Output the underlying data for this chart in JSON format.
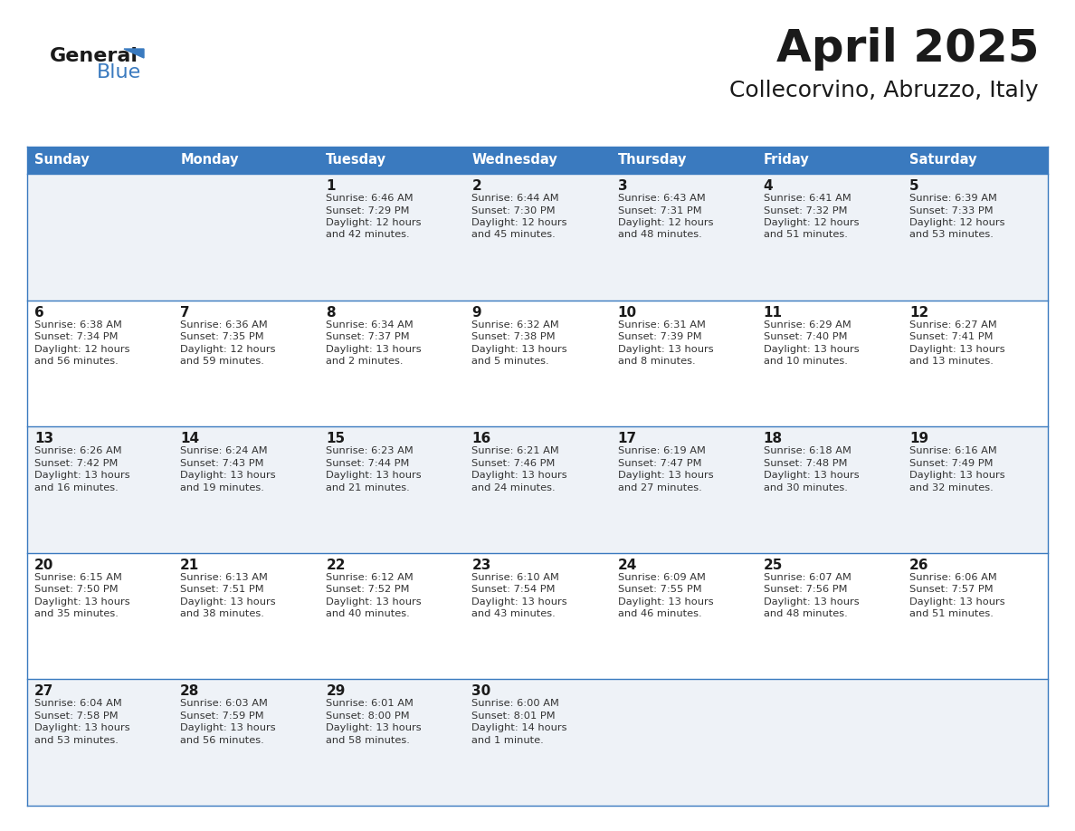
{
  "title": "April 2025",
  "subtitle": "Collecorvino, Abruzzo, Italy",
  "days_of_week": [
    "Sunday",
    "Monday",
    "Tuesday",
    "Wednesday",
    "Thursday",
    "Friday",
    "Saturday"
  ],
  "header_bg_color": "#3a7abf",
  "header_text_color": "#ffffff",
  "cell_bg_even": "#eef2f7",
  "cell_bg_odd": "#ffffff",
  "row_line_color": "#3a7abf",
  "title_color": "#1a1a1a",
  "subtitle_color": "#1a1a1a",
  "day_num_color": "#1a1a1a",
  "cell_text_color": "#333333",
  "logo_general_color": "#1a1a1a",
  "logo_blue_color": "#3a7abf",
  "fig_width": 11.88,
  "fig_height": 9.18,
  "dpi": 100,
  "weeks": [
    {
      "days": [
        {
          "day": null,
          "sunrise": null,
          "sunset": null,
          "daylight": null
        },
        {
          "day": null,
          "sunrise": null,
          "sunset": null,
          "daylight": null
        },
        {
          "day": 1,
          "sunrise": "Sunrise: 6:46 AM",
          "sunset": "Sunset: 7:29 PM",
          "daylight": "Daylight: 12 hours\nand 42 minutes."
        },
        {
          "day": 2,
          "sunrise": "Sunrise: 6:44 AM",
          "sunset": "Sunset: 7:30 PM",
          "daylight": "Daylight: 12 hours\nand 45 minutes."
        },
        {
          "day": 3,
          "sunrise": "Sunrise: 6:43 AM",
          "sunset": "Sunset: 7:31 PM",
          "daylight": "Daylight: 12 hours\nand 48 minutes."
        },
        {
          "day": 4,
          "sunrise": "Sunrise: 6:41 AM",
          "sunset": "Sunset: 7:32 PM",
          "daylight": "Daylight: 12 hours\nand 51 minutes."
        },
        {
          "day": 5,
          "sunrise": "Sunrise: 6:39 AM",
          "sunset": "Sunset: 7:33 PM",
          "daylight": "Daylight: 12 hours\nand 53 minutes."
        }
      ]
    },
    {
      "days": [
        {
          "day": 6,
          "sunrise": "Sunrise: 6:38 AM",
          "sunset": "Sunset: 7:34 PM",
          "daylight": "Daylight: 12 hours\nand 56 minutes."
        },
        {
          "day": 7,
          "sunrise": "Sunrise: 6:36 AM",
          "sunset": "Sunset: 7:35 PM",
          "daylight": "Daylight: 12 hours\nand 59 minutes."
        },
        {
          "day": 8,
          "sunrise": "Sunrise: 6:34 AM",
          "sunset": "Sunset: 7:37 PM",
          "daylight": "Daylight: 13 hours\nand 2 minutes."
        },
        {
          "day": 9,
          "sunrise": "Sunrise: 6:32 AM",
          "sunset": "Sunset: 7:38 PM",
          "daylight": "Daylight: 13 hours\nand 5 minutes."
        },
        {
          "day": 10,
          "sunrise": "Sunrise: 6:31 AM",
          "sunset": "Sunset: 7:39 PM",
          "daylight": "Daylight: 13 hours\nand 8 minutes."
        },
        {
          "day": 11,
          "sunrise": "Sunrise: 6:29 AM",
          "sunset": "Sunset: 7:40 PM",
          "daylight": "Daylight: 13 hours\nand 10 minutes."
        },
        {
          "day": 12,
          "sunrise": "Sunrise: 6:27 AM",
          "sunset": "Sunset: 7:41 PM",
          "daylight": "Daylight: 13 hours\nand 13 minutes."
        }
      ]
    },
    {
      "days": [
        {
          "day": 13,
          "sunrise": "Sunrise: 6:26 AM",
          "sunset": "Sunset: 7:42 PM",
          "daylight": "Daylight: 13 hours\nand 16 minutes."
        },
        {
          "day": 14,
          "sunrise": "Sunrise: 6:24 AM",
          "sunset": "Sunset: 7:43 PM",
          "daylight": "Daylight: 13 hours\nand 19 minutes."
        },
        {
          "day": 15,
          "sunrise": "Sunrise: 6:23 AM",
          "sunset": "Sunset: 7:44 PM",
          "daylight": "Daylight: 13 hours\nand 21 minutes."
        },
        {
          "day": 16,
          "sunrise": "Sunrise: 6:21 AM",
          "sunset": "Sunset: 7:46 PM",
          "daylight": "Daylight: 13 hours\nand 24 minutes."
        },
        {
          "day": 17,
          "sunrise": "Sunrise: 6:19 AM",
          "sunset": "Sunset: 7:47 PM",
          "daylight": "Daylight: 13 hours\nand 27 minutes."
        },
        {
          "day": 18,
          "sunrise": "Sunrise: 6:18 AM",
          "sunset": "Sunset: 7:48 PM",
          "daylight": "Daylight: 13 hours\nand 30 minutes."
        },
        {
          "day": 19,
          "sunrise": "Sunrise: 6:16 AM",
          "sunset": "Sunset: 7:49 PM",
          "daylight": "Daylight: 13 hours\nand 32 minutes."
        }
      ]
    },
    {
      "days": [
        {
          "day": 20,
          "sunrise": "Sunrise: 6:15 AM",
          "sunset": "Sunset: 7:50 PM",
          "daylight": "Daylight: 13 hours\nand 35 minutes."
        },
        {
          "day": 21,
          "sunrise": "Sunrise: 6:13 AM",
          "sunset": "Sunset: 7:51 PM",
          "daylight": "Daylight: 13 hours\nand 38 minutes."
        },
        {
          "day": 22,
          "sunrise": "Sunrise: 6:12 AM",
          "sunset": "Sunset: 7:52 PM",
          "daylight": "Daylight: 13 hours\nand 40 minutes."
        },
        {
          "day": 23,
          "sunrise": "Sunrise: 6:10 AM",
          "sunset": "Sunset: 7:54 PM",
          "daylight": "Daylight: 13 hours\nand 43 minutes."
        },
        {
          "day": 24,
          "sunrise": "Sunrise: 6:09 AM",
          "sunset": "Sunset: 7:55 PM",
          "daylight": "Daylight: 13 hours\nand 46 minutes."
        },
        {
          "day": 25,
          "sunrise": "Sunrise: 6:07 AM",
          "sunset": "Sunset: 7:56 PM",
          "daylight": "Daylight: 13 hours\nand 48 minutes."
        },
        {
          "day": 26,
          "sunrise": "Sunrise: 6:06 AM",
          "sunset": "Sunset: 7:57 PM",
          "daylight": "Daylight: 13 hours\nand 51 minutes."
        }
      ]
    },
    {
      "days": [
        {
          "day": 27,
          "sunrise": "Sunrise: 6:04 AM",
          "sunset": "Sunset: 7:58 PM",
          "daylight": "Daylight: 13 hours\nand 53 minutes."
        },
        {
          "day": 28,
          "sunrise": "Sunrise: 6:03 AM",
          "sunset": "Sunset: 7:59 PM",
          "daylight": "Daylight: 13 hours\nand 56 minutes."
        },
        {
          "day": 29,
          "sunrise": "Sunrise: 6:01 AM",
          "sunset": "Sunset: 8:00 PM",
          "daylight": "Daylight: 13 hours\nand 58 minutes."
        },
        {
          "day": 30,
          "sunrise": "Sunrise: 6:00 AM",
          "sunset": "Sunset: 8:01 PM",
          "daylight": "Daylight: 14 hours\nand 1 minute."
        },
        {
          "day": null,
          "sunrise": null,
          "sunset": null,
          "daylight": null
        },
        {
          "day": null,
          "sunrise": null,
          "sunset": null,
          "daylight": null
        },
        {
          "day": null,
          "sunrise": null,
          "sunset": null,
          "daylight": null
        }
      ]
    }
  ]
}
